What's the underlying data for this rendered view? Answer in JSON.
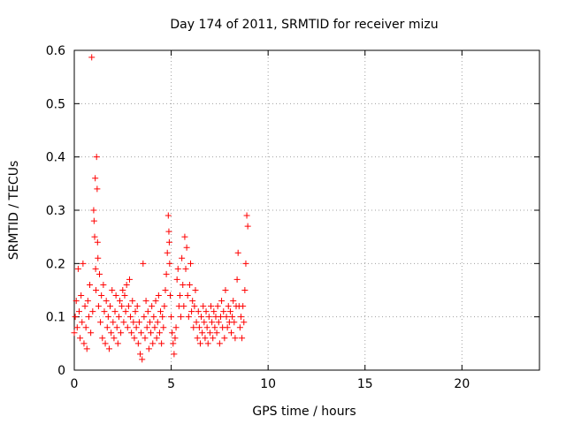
{
  "chart_data": {
    "type": "scatter",
    "title": "Day 174 of 2011, SRMTID for receiver mizu",
    "xlabel": "GPS time / hours",
    "ylabel": "SRMTID / TECUs",
    "xlim": [
      0,
      24
    ],
    "ylim": [
      0,
      0.6
    ],
    "xticks": [
      0,
      5,
      10,
      15,
      20
    ],
    "xtick_labels": [
      "0",
      "5",
      "10",
      "15",
      "20"
    ],
    "yticks": [
      0,
      0.1,
      0.2,
      0.3,
      0.4,
      0.5,
      0.6
    ],
    "ytick_labels": [
      "0",
      "0.1",
      "0.2",
      "0.3",
      "0.4",
      "0.5",
      "0.6"
    ],
    "grid": true,
    "marker": "+",
    "series": [
      {
        "name": "SRMTID",
        "color": "#ff0000",
        "points": [
          [
            0.0,
            0.07
          ],
          [
            0.05,
            0.1
          ],
          [
            0.1,
            0.13
          ],
          [
            0.15,
            0.08
          ],
          [
            0.2,
            0.19
          ],
          [
            0.25,
            0.11
          ],
          [
            0.3,
            0.06
          ],
          [
            0.35,
            0.14
          ],
          [
            0.4,
            0.09
          ],
          [
            0.45,
            0.2
          ],
          [
            0.5,
            0.05
          ],
          [
            0.55,
            0.12
          ],
          [
            0.6,
            0.08
          ],
          [
            0.65,
            0.04
          ],
          [
            0.7,
            0.13
          ],
          [
            0.75,
            0.1
          ],
          [
            0.8,
            0.16
          ],
          [
            0.85,
            0.07
          ],
          [
            0.9,
            0.587
          ],
          [
            0.95,
            0.11
          ],
          [
            1.0,
            0.3
          ],
          [
            1.02,
            0.28
          ],
          [
            1.05,
            0.25
          ],
          [
            1.08,
            0.36
          ],
          [
            1.1,
            0.19
          ],
          [
            1.12,
            0.15
          ],
          [
            1.15,
            0.4
          ],
          [
            1.18,
            0.34
          ],
          [
            1.2,
            0.24
          ],
          [
            1.22,
            0.21
          ],
          [
            1.25,
            0.12
          ],
          [
            1.3,
            0.18
          ],
          [
            1.35,
            0.09
          ],
          [
            1.4,
            0.14
          ],
          [
            1.45,
            0.06
          ],
          [
            1.5,
            0.16
          ],
          [
            1.55,
            0.11
          ],
          [
            1.6,
            0.05
          ],
          [
            1.65,
            0.13
          ],
          [
            1.7,
            0.08
          ],
          [
            1.75,
            0.1
          ],
          [
            1.8,
            0.04
          ],
          [
            1.85,
            0.12
          ],
          [
            1.9,
            0.07
          ],
          [
            1.95,
            0.15
          ],
          [
            2.0,
            0.09
          ],
          [
            2.05,
            0.06
          ],
          [
            2.1,
            0.11
          ],
          [
            2.15,
            0.14
          ],
          [
            2.2,
            0.08
          ],
          [
            2.25,
            0.05
          ],
          [
            2.3,
            0.1
          ],
          [
            2.35,
            0.13
          ],
          [
            2.4,
            0.07
          ],
          [
            2.45,
            0.12
          ],
          [
            2.5,
            0.15
          ],
          [
            2.55,
            0.09
          ],
          [
            2.6,
            0.14
          ],
          [
            2.65,
            0.11
          ],
          [
            2.7,
            0.16
          ],
          [
            2.75,
            0.08
          ],
          [
            2.8,
            0.12
          ],
          [
            2.85,
            0.17
          ],
          [
            2.9,
            0.1
          ],
          [
            2.95,
            0.07
          ],
          [
            3.0,
            0.13
          ],
          [
            3.05,
            0.09
          ],
          [
            3.1,
            0.06
          ],
          [
            3.15,
            0.11
          ],
          [
            3.2,
            0.08
          ],
          [
            3.25,
            0.12
          ],
          [
            3.3,
            0.05
          ],
          [
            3.35,
            0.09
          ],
          [
            3.4,
            0.03
          ],
          [
            3.45,
            0.07
          ],
          [
            3.5,
            0.02
          ],
          [
            3.55,
            0.2
          ],
          [
            3.6,
            0.1
          ],
          [
            3.65,
            0.06
          ],
          [
            3.7,
            0.13
          ],
          [
            3.75,
            0.08
          ],
          [
            3.8,
            0.11
          ],
          [
            3.85,
            0.04
          ],
          [
            3.9,
            0.09
          ],
          [
            3.95,
            0.07
          ],
          [
            4.0,
            0.12
          ],
          [
            4.05,
            0.05
          ],
          [
            4.1,
            0.1
          ],
          [
            4.15,
            0.08
          ],
          [
            4.2,
            0.13
          ],
          [
            4.25,
            0.06
          ],
          [
            4.3,
            0.09
          ],
          [
            4.35,
            0.14
          ],
          [
            4.4,
            0.07
          ],
          [
            4.45,
            0.11
          ],
          [
            4.5,
            0.05
          ],
          [
            4.55,
            0.1
          ],
          [
            4.6,
            0.08
          ],
          [
            4.65,
            0.12
          ],
          [
            4.7,
            0.15
          ],
          [
            4.75,
            0.18
          ],
          [
            4.8,
            0.22
          ],
          [
            4.85,
            0.29
          ],
          [
            4.88,
            0.26
          ],
          [
            4.9,
            0.24
          ],
          [
            4.92,
            0.2
          ],
          [
            4.95,
            0.14
          ],
          [
            5.0,
            0.1
          ],
          [
            5.05,
            0.07
          ],
          [
            5.1,
            0.05
          ],
          [
            5.15,
            0.03
          ],
          [
            5.2,
            0.06
          ],
          [
            5.25,
            0.08
          ],
          [
            5.3,
            0.17
          ],
          [
            5.35,
            0.19
          ],
          [
            5.4,
            0.12
          ],
          [
            5.45,
            0.14
          ],
          [
            5.5,
            0.1
          ],
          [
            5.55,
            0.21
          ],
          [
            5.6,
            0.16
          ],
          [
            5.65,
            0.12
          ],
          [
            5.7,
            0.25
          ],
          [
            5.75,
            0.19
          ],
          [
            5.8,
            0.23
          ],
          [
            5.85,
            0.14
          ],
          [
            5.9,
            0.1
          ],
          [
            5.95,
            0.16
          ],
          [
            6.0,
            0.2
          ],
          [
            6.05,
            0.11
          ],
          [
            6.1,
            0.13
          ],
          [
            6.15,
            0.08
          ],
          [
            6.2,
            0.12
          ],
          [
            6.25,
            0.15
          ],
          [
            6.3,
            0.09
          ],
          [
            6.35,
            0.06
          ],
          [
            6.4,
            0.11
          ],
          [
            6.45,
            0.08
          ],
          [
            6.5,
            0.05
          ],
          [
            6.55,
            0.1
          ],
          [
            6.6,
            0.07
          ],
          [
            6.65,
            0.12
          ],
          [
            6.7,
            0.09
          ],
          [
            6.75,
            0.06
          ],
          [
            6.8,
            0.11
          ],
          [
            6.85,
            0.08
          ],
          [
            6.9,
            0.05
          ],
          [
            6.95,
            0.1
          ],
          [
            7.0,
            0.07
          ],
          [
            7.05,
            0.12
          ],
          [
            7.1,
            0.09
          ],
          [
            7.15,
            0.06
          ],
          [
            7.2,
            0.11
          ],
          [
            7.25,
            0.08
          ],
          [
            7.3,
            0.1
          ],
          [
            7.35,
            0.07
          ],
          [
            7.4,
            0.12
          ],
          [
            7.45,
            0.09
          ],
          [
            7.5,
            0.05
          ],
          [
            7.55,
            0.1
          ],
          [
            7.6,
            0.13
          ],
          [
            7.65,
            0.08
          ],
          [
            7.7,
            0.11
          ],
          [
            7.75,
            0.06
          ],
          [
            7.8,
            0.15
          ],
          [
            7.85,
            0.1
          ],
          [
            7.9,
            0.08
          ],
          [
            7.95,
            0.12
          ],
          [
            8.0,
            0.09
          ],
          [
            8.05,
            0.11
          ],
          [
            8.1,
            0.07
          ],
          [
            8.15,
            0.1
          ],
          [
            8.2,
            0.13
          ],
          [
            8.25,
            0.09
          ],
          [
            8.3,
            0.06
          ],
          [
            8.35,
            0.12
          ],
          [
            8.4,
            0.17
          ],
          [
            8.45,
            0.22
          ],
          [
            8.5,
            0.12
          ],
          [
            8.55,
            0.08
          ],
          [
            8.6,
            0.1
          ],
          [
            8.65,
            0.06
          ],
          [
            8.7,
            0.12
          ],
          [
            8.75,
            0.09
          ],
          [
            8.8,
            0.15
          ],
          [
            8.85,
            0.2
          ],
          [
            8.9,
            0.29
          ],
          [
            8.95,
            0.27
          ]
        ]
      }
    ]
  }
}
